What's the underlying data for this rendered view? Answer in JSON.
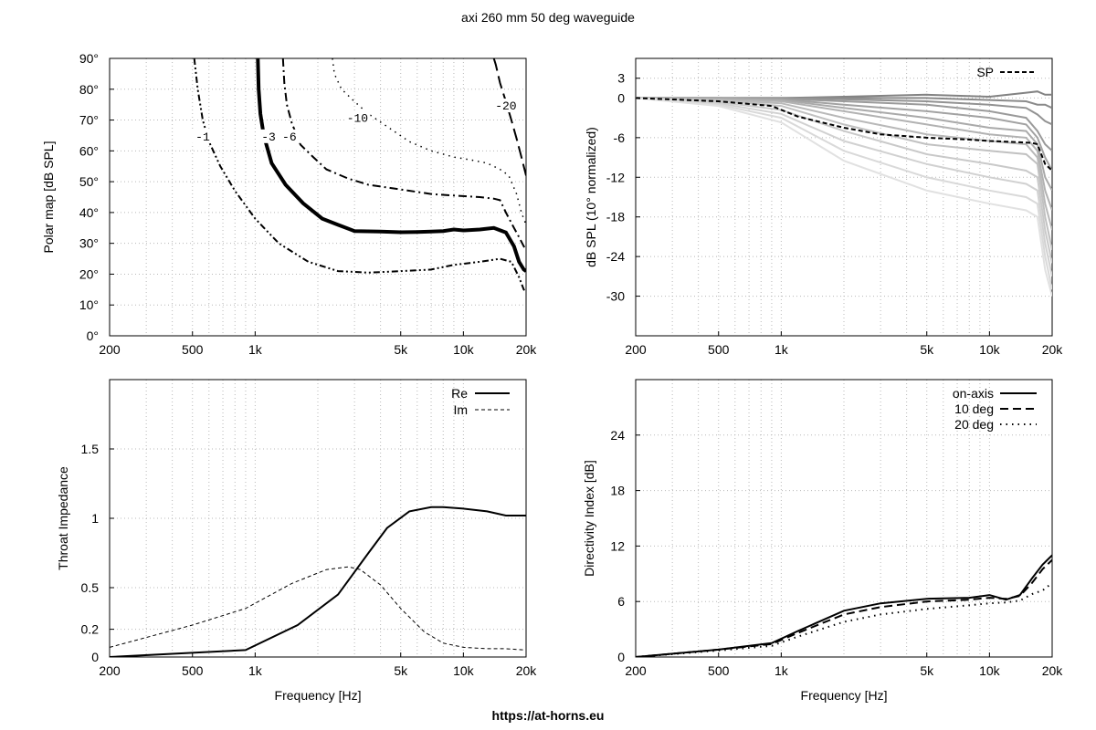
{
  "title": "axi 260 mm 50 deg waveguide",
  "footer": "https://at-horns.eu",
  "chart_data": [
    {
      "id": "polar",
      "type": "line",
      "subtype": "contour",
      "xscale": "log",
      "xlim": [
        200,
        20000
      ],
      "ylim": [
        0,
        90
      ],
      "xticks": [
        200,
        500,
        1000,
        5000,
        10000,
        20000
      ],
      "xtick_labels": [
        "200",
        "500",
        "1k",
        "5k",
        "10k",
        "20k"
      ],
      "yticks": [
        0,
        10,
        20,
        30,
        40,
        50,
        60,
        70,
        80,
        90
      ],
      "ytick_labels": [
        "0°",
        "10°",
        "20°",
        "30°",
        "40°",
        "50°",
        "60°",
        "70°",
        "80°",
        "90°"
      ],
      "xlabel": "",
      "ylabel": "Polar map [dB SPL]",
      "grid": true,
      "series": [
        {
          "name": "-1",
          "label_at": [
            560,
            64
          ],
          "x": [
            510,
            530,
            560,
            600,
            680,
            800,
            1000,
            1300,
            1800,
            2500,
            3500,
            5000,
            7000,
            9000,
            12000,
            15000,
            17000,
            18500,
            19500,
            20000
          ],
          "y": [
            90,
            80,
            70,
            63,
            55,
            47,
            38,
            30,
            24,
            21,
            20.5,
            21,
            21.5,
            23,
            24,
            25,
            24,
            19,
            15,
            14.5
          ]
        },
        {
          "name": "-3",
          "label_at": [
            1160,
            64
          ],
          "x": [
            1030,
            1040,
            1060,
            1100,
            1200,
            1400,
            1700,
            2100,
            2500,
            3000,
            4000,
            5000,
            6000,
            7000,
            8000,
            9000,
            10000,
            12000,
            14000,
            16000,
            17500,
            18500,
            19500,
            20000
          ],
          "y": [
            90,
            80,
            72,
            65,
            56,
            49,
            43,
            38,
            36,
            34,
            33.8,
            33.6,
            33.7,
            33.8,
            34,
            34.5,
            34.2,
            34.5,
            35,
            33.5,
            29,
            24,
            21.5,
            21
          ]
        },
        {
          "name": "-6",
          "label_at": [
            1460,
            64
          ],
          "x": [
            1360,
            1380,
            1420,
            1500,
            1650,
            1900,
            2200,
            2800,
            3500,
            5000,
            7000,
            9000,
            12000,
            14000,
            15000,
            16000,
            17500,
            18500,
            19500,
            20000
          ],
          "y": [
            90,
            82,
            75,
            69,
            62,
            58,
            54,
            51,
            49,
            47.5,
            46,
            45.5,
            45,
            44.5,
            44,
            40,
            35,
            32,
            29,
            28
          ]
        },
        {
          "name": "-10",
          "label_at": [
            3100,
            70
          ],
          "x": [
            2350,
            2400,
            2600,
            3000,
            3500,
            4500,
            5500,
            7000,
            9000,
            11000,
            13000,
            15000,
            16500,
            18000,
            19000,
            20000
          ],
          "y": [
            90,
            85,
            80,
            76,
            72,
            67,
            63,
            60,
            58,
            57,
            56,
            54,
            52,
            46,
            40,
            36
          ]
        },
        {
          "name": "-20",
          "label_at": [
            16000,
            74
          ],
          "x": [
            14000,
            14300,
            15000,
            16000,
            17000,
            18000,
            19000,
            20000
          ],
          "y": [
            90,
            88,
            82,
            76,
            70,
            64,
            58,
            52
          ]
        }
      ]
    },
    {
      "id": "spl",
      "type": "line",
      "xscale": "log",
      "xlim": [
        200,
        20000
      ],
      "ylim": [
        -36,
        6
      ],
      "xticks": [
        200,
        500,
        1000,
        5000,
        10000,
        20000
      ],
      "xtick_labels": [
        "200",
        "500",
        "1k",
        "5k",
        "10k",
        "20k"
      ],
      "yticks": [
        3,
        0,
        -6,
        -12,
        -18,
        -24,
        -30
      ],
      "ytick_labels": [
        "3",
        "0",
        "-6",
        "-12",
        "-18",
        "-24",
        "-30"
      ],
      "xlabel": "",
      "ylabel": "dB SPL (10° normalized)",
      "legend": "top-right",
      "grid": true,
      "sp": {
        "name": "SP",
        "x": [
          200,
          500,
          900,
          1200,
          2000,
          3000,
          5000,
          8000,
          10000,
          12000,
          14000,
          16000,
          17000,
          18500,
          20000
        ],
        "y": [
          0,
          -0.5,
          -1.2,
          -2.8,
          -4.5,
          -5.5,
          -6,
          -6.3,
          -6.5,
          -6.6,
          -6.7,
          -6.8,
          -7,
          -10,
          -11
        ]
      },
      "curves": {
        "x": [
          200,
          500,
          1000,
          2000,
          5000,
          10000,
          15000,
          17000,
          18500,
          20000
        ],
        "y": [
          [
            0,
            0,
            0,
            0.2,
            0.5,
            0.2,
            0.8,
            1,
            0.5,
            0.5
          ],
          [
            0,
            0,
            0,
            0,
            0,
            -0.3,
            -0.5,
            -1,
            -1,
            -1.5
          ],
          [
            0,
            0,
            0,
            -0.2,
            -0.5,
            -1,
            -1.5,
            -2.5,
            -3.5,
            -4
          ],
          [
            0,
            0,
            -0.1,
            -0.5,
            -1,
            -2,
            -3,
            -5,
            -7,
            -8
          ],
          [
            0,
            0,
            -0.2,
            -1,
            -2,
            -3,
            -4,
            -6,
            -9,
            -11
          ],
          [
            0,
            -0.1,
            -0.3,
            -1.5,
            -3,
            -4.5,
            -5,
            -7,
            -12,
            -14
          ],
          [
            0,
            -0.2,
            -0.5,
            -2,
            -4,
            -5.5,
            -6,
            -8,
            -14,
            -17
          ],
          [
            0,
            -0.3,
            -0.8,
            -3,
            -5.5,
            -6.5,
            -7,
            -9,
            -16,
            -20
          ],
          [
            0,
            -0.4,
            -1.2,
            -4,
            -7,
            -8,
            -8.5,
            -10,
            -18,
            -23
          ],
          [
            0,
            -0.6,
            -1.8,
            -5,
            -8.5,
            -10,
            -11,
            -12,
            -20,
            -25
          ],
          [
            0,
            -0.8,
            -2.4,
            -6.5,
            -10,
            -12,
            -13,
            -14,
            -22,
            -27
          ],
          [
            0,
            -1,
            -3,
            -8,
            -12,
            -14,
            -15,
            -16,
            -24,
            -29
          ],
          [
            0,
            -1.2,
            -3.7,
            -9.5,
            -14,
            -16,
            -17,
            -18,
            -26,
            -30
          ]
        ]
      }
    },
    {
      "id": "impedance",
      "type": "line",
      "xscale": "log",
      "xlim": [
        200,
        20000
      ],
      "ylim": [
        0,
        2
      ],
      "xticks": [
        200,
        500,
        1000,
        5000,
        10000,
        20000
      ],
      "xtick_labels": [
        "200",
        "500",
        "1k",
        "5k",
        "10k",
        "20k"
      ],
      "yticks": [
        0,
        0.2,
        0.5,
        1,
        1.5
      ],
      "ytick_labels": [
        "0",
        "0.2",
        "0.5",
        "1",
        "1.5"
      ],
      "xlabel": "Frequency [Hz]",
      "ylabel": "Throat Impedance",
      "legend": "top-right",
      "grid": true,
      "series": [
        {
          "name": "Re",
          "x": [
            200,
            500,
            900,
            1600,
            2500,
            3500,
            4300,
            5500,
            7000,
            8000,
            10000,
            13000,
            16000,
            18000,
            20000
          ],
          "y": [
            0,
            0.03,
            0.05,
            0.23,
            0.45,
            0.75,
            0.93,
            1.05,
            1.08,
            1.08,
            1.07,
            1.05,
            1.02,
            1.02,
            1.02
          ]
        },
        {
          "name": "Im",
          "x": [
            200,
            500,
            900,
            1500,
            2200,
            2800,
            3200,
            4000,
            5000,
            6500,
            8000,
            10000,
            13000,
            16000,
            20000
          ],
          "y": [
            0.07,
            0.23,
            0.35,
            0.53,
            0.63,
            0.65,
            0.63,
            0.52,
            0.35,
            0.18,
            0.1,
            0.07,
            0.06,
            0.06,
            0.05
          ]
        }
      ]
    },
    {
      "id": "di",
      "type": "line",
      "xscale": "log",
      "xlim": [
        200,
        20000
      ],
      "ylim": [
        0,
        30
      ],
      "xticks": [
        200,
        500,
        1000,
        5000,
        10000,
        20000
      ],
      "xtick_labels": [
        "200",
        "500",
        "1k",
        "5k",
        "10k",
        "20k"
      ],
      "yticks": [
        0,
        6,
        12,
        18,
        24
      ],
      "ytick_labels": [
        "0",
        "6",
        "12",
        "18",
        "24"
      ],
      "xlabel": "Frequency [Hz]",
      "ylabel": "Directivity Index [dB]",
      "legend": "top-right",
      "grid": true,
      "series": [
        {
          "name": "on-axis",
          "x": [
            200,
            500,
            900,
            1200,
            2000,
            3000,
            5000,
            8000,
            10000,
            12000,
            14000,
            16000,
            18000,
            20000
          ],
          "y": [
            0,
            0.8,
            1.5,
            2.8,
            5,
            5.8,
            6.3,
            6.4,
            6.7,
            6.2,
            6.7,
            8.5,
            10,
            11
          ]
        },
        {
          "name": "10 deg",
          "x": [
            200,
            500,
            900,
            1200,
            2000,
            3000,
            5000,
            8000,
            10000,
            12000,
            14000,
            16000,
            18000,
            20000
          ],
          "y": [
            0,
            0.8,
            1.4,
            2.6,
            4.6,
            5.4,
            6,
            6.2,
            6.4,
            6.3,
            6.6,
            8,
            9.5,
            10.5
          ]
        },
        {
          "name": "20 deg",
          "x": [
            200,
            500,
            900,
            1200,
            2000,
            3000,
            5000,
            8000,
            10000,
            12000,
            14000,
            16000,
            18000,
            20000
          ],
          "y": [
            0,
            0.7,
            1.2,
            2.2,
            3.8,
            4.6,
            5.2,
            5.6,
            5.8,
            5.9,
            6.1,
            6.8,
            7.2,
            8
          ]
        }
      ]
    }
  ]
}
